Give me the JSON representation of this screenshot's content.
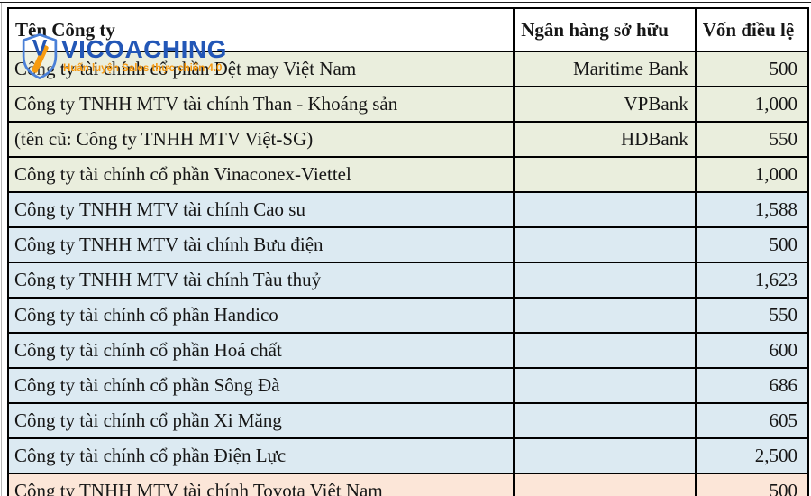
{
  "logo": {
    "brand": "VICOACHING",
    "tagline": "Huấn luyện Sales thực chiến 4.0",
    "brand_color": "#2357b7",
    "tagline_color": "#f6980e",
    "shield_outline_color": "#4a80d8",
    "shield_v_color": "#2356b5",
    "shield_slash_color": "#f79b10"
  },
  "table": {
    "columns": [
      {
        "key": "name",
        "label": "Tên Công ty"
      },
      {
        "key": "bank",
        "label": "Ngân hàng sở hữu"
      },
      {
        "key": "capital",
        "label": "Vốn điều lệ"
      }
    ],
    "group_colors": {
      "beige": "#eaeedd",
      "blue": "#dceaf2",
      "pink": "#fce6d8"
    },
    "rows": [
      {
        "name": "Công ty tài chính cổ phần Dệt may Việt Nam",
        "bank": "Maritime Bank",
        "capital": "500",
        "group": "beige"
      },
      {
        "name": "Công ty TNHH MTV tài chính Than - Khoáng sản",
        "bank": "VPBank",
        "capital": "1,000",
        "group": "beige"
      },
      {
        "name": "(tên cũ: Công ty TNHH MTV Việt-SG)",
        "bank": "HDBank",
        "capital": "550",
        "group": "beige"
      },
      {
        "name": "Công ty tài chính cổ phần Vinaconex-Viettel",
        "bank": "",
        "capital": "1,000",
        "group": "beige"
      },
      {
        "name": "Công ty TNHH MTV tài chính Cao su",
        "bank": "",
        "capital": "1,588",
        "group": "blue"
      },
      {
        "name": "Công ty TNHH MTV tài chính Bưu điện",
        "bank": "",
        "capital": "500",
        "group": "blue"
      },
      {
        "name": "Công ty TNHH MTV tài chính Tàu thuỷ",
        "bank": "",
        "capital": "1,623",
        "group": "blue"
      },
      {
        "name": "Công ty tài chính cổ phần Handico",
        "bank": "",
        "capital": "550",
        "group": "blue"
      },
      {
        "name": "Công ty tài chính cổ phần Hoá chất",
        "bank": "",
        "capital": "600",
        "group": "blue"
      },
      {
        "name": "Công ty tài chính cổ phần Sông Đà",
        "bank": "",
        "capital": "686",
        "group": "blue"
      },
      {
        "name": "Công ty tài chính cổ phần Xi Măng",
        "bank": "",
        "capital": "605",
        "group": "blue"
      },
      {
        "name": "Công ty tài chính cổ phần Điện Lực",
        "bank": "",
        "capital": "2,500",
        "group": "blue"
      },
      {
        "name": "Công ty TNHH MTV tài chính Toyota Việt Nam",
        "bank": "",
        "capital": "500",
        "group": "pink"
      }
    ]
  }
}
